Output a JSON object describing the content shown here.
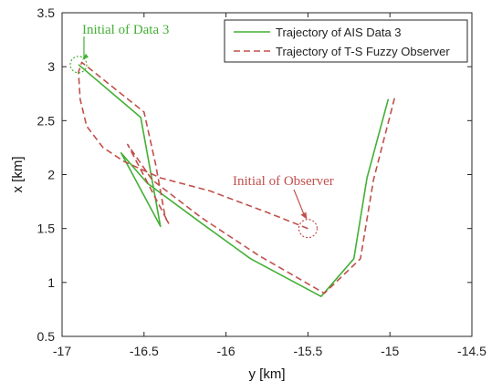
{
  "chart_data": {
    "type": "line",
    "title": "",
    "xlabel": "y [km]",
    "ylabel": "x [km]",
    "xlim": [
      -17,
      -14.5
    ],
    "ylim": [
      0.5,
      3.5
    ],
    "xticks": [
      "-17",
      "-16.5",
      "-16",
      "-15.5",
      "-15",
      "-14.5"
    ],
    "yticks": [
      "0.5",
      "1",
      "1.5",
      "2",
      "2.5",
      "3",
      "3.5"
    ],
    "grid": false,
    "legend_position": "top-right",
    "colors": {
      "ais": "#44b035",
      "observer": "#c0504d"
    },
    "series": [
      {
        "name": "Trajectory of AIS Data 3",
        "style": "solid",
        "points": [
          [
            -16.9,
            3.02
          ],
          [
            -16.52,
            2.53
          ],
          [
            -16.4,
            1.52
          ],
          [
            -16.64,
            2.2
          ],
          [
            -16.48,
            1.92
          ],
          [
            -16.15,
            1.55
          ],
          [
            -15.85,
            1.22
          ],
          [
            -15.42,
            0.87
          ],
          [
            -15.22,
            1.22
          ],
          [
            -15.14,
            1.97
          ],
          [
            -15.01,
            2.7
          ]
        ]
      },
      {
        "name": "Trajectory of T-S Fuzzy Observer",
        "style": "dashed",
        "points": [
          [
            -15.5,
            1.5
          ],
          [
            -15.75,
            1.65
          ],
          [
            -16.1,
            1.85
          ],
          [
            -16.4,
            1.97
          ],
          [
            -16.62,
            2.12
          ],
          [
            -16.75,
            2.25
          ],
          [
            -16.85,
            2.45
          ],
          [
            -16.89,
            2.7
          ],
          [
            -16.9,
            2.95
          ],
          [
            -16.88,
            3.04
          ],
          [
            -16.5,
            2.58
          ],
          [
            -16.43,
            2.1
          ],
          [
            -16.37,
            1.6
          ],
          [
            -16.35,
            1.55
          ],
          [
            -16.6,
            2.28
          ],
          [
            -16.45,
            1.95
          ],
          [
            -16.15,
            1.6
          ],
          [
            -15.8,
            1.25
          ],
          [
            -15.4,
            0.9
          ],
          [
            -15.18,
            1.22
          ],
          [
            -15.1,
            1.95
          ],
          [
            -14.97,
            2.72
          ]
        ]
      }
    ],
    "annotations": [
      {
        "text": "Initial  of Data 3",
        "color": "#44b035",
        "target": [
          -16.9,
          3.02
        ]
      },
      {
        "text": "Initial  of Observer",
        "color": "#c0504d",
        "target": [
          -15.5,
          1.5
        ]
      }
    ]
  }
}
